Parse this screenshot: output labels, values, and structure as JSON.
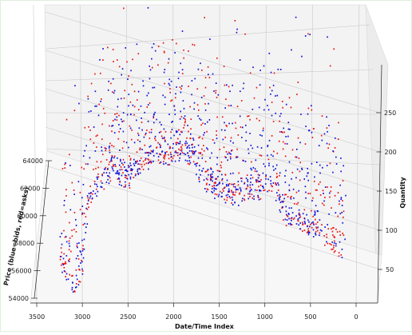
{
  "chart_data": {
    "type": "scatter3d",
    "title": "",
    "xlabel": "Date/Time Index",
    "ylabel": "Price (blue=bids, red=asks)",
    "zlabel": "Quantity",
    "x_ticks": [
      "3500",
      "3000",
      "2500",
      "2000",
      "1500",
      "1000",
      "500",
      "0"
    ],
    "y_ticks": [
      "54000",
      "56000",
      "58000",
      "60000",
      "62000",
      "64000"
    ],
    "z_ticks": [
      "50",
      "100",
      "150",
      "200",
      "250"
    ],
    "xlim": [
      3550,
      -50
    ],
    "ylim": [
      53500,
      64500
    ],
    "zlim": [
      20,
      300
    ],
    "series": [
      {
        "name": "bids",
        "color": "#1010dd"
      },
      {
        "name": "asks",
        "color": "#ee1111"
      }
    ],
    "price_profile": [
      {
        "x": 3250,
        "y": 56600
      },
      {
        "x": 3200,
        "y": 56100
      },
      {
        "x": 3150,
        "y": 55300
      },
      {
        "x": 3100,
        "y": 54800
      },
      {
        "x": 3050,
        "y": 55700
      },
      {
        "x": 3000,
        "y": 56200
      },
      {
        "x": 2950,
        "y": 60800
      },
      {
        "x": 2900,
        "y": 61800
      },
      {
        "x": 2800,
        "y": 62300
      },
      {
        "x": 2700,
        "y": 63300
      },
      {
        "x": 2600,
        "y": 63000
      },
      {
        "x": 2500,
        "y": 62600
      },
      {
        "x": 2400,
        "y": 63700
      },
      {
        "x": 2300,
        "y": 64000
      },
      {
        "x": 2200,
        "y": 64700
      },
      {
        "x": 2100,
        "y": 64200
      },
      {
        "x": 2000,
        "y": 64500
      },
      {
        "x": 1900,
        "y": 64700
      },
      {
        "x": 1800,
        "y": 64400
      },
      {
        "x": 1700,
        "y": 62700
      },
      {
        "x": 1600,
        "y": 62300
      },
      {
        "x": 1500,
        "y": 61700
      },
      {
        "x": 1400,
        "y": 61400
      },
      {
        "x": 1300,
        "y": 61500
      },
      {
        "x": 1200,
        "y": 62000
      },
      {
        "x": 1100,
        "y": 61700
      },
      {
        "x": 1000,
        "y": 62100
      },
      {
        "x": 900,
        "y": 62600
      },
      {
        "x": 850,
        "y": 61000
      },
      {
        "x": 800,
        "y": 60200
      },
      {
        "x": 700,
        "y": 59800
      },
      {
        "x": 600,
        "y": 59500
      },
      {
        "x": 500,
        "y": 59300
      },
      {
        "x": 400,
        "y": 58800
      },
      {
        "x": 300,
        "y": 58200
      },
      {
        "x": 200,
        "y": 57800
      },
      {
        "x": 130,
        "y": 57600
      }
    ]
  }
}
